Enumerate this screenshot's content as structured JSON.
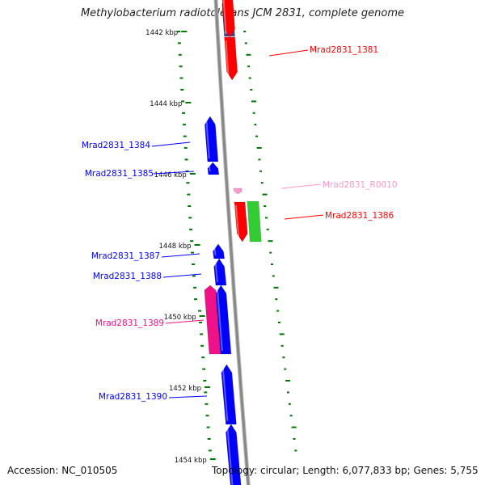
{
  "title": "Methylobacterium radiotolerans JCM 2831, complete genome",
  "footer": {
    "accession": "Accession: NC_010505",
    "summary": "Topology: circular; Length: 6,077,833 bp; Genes: 5,755"
  },
  "colors": {
    "forward_cds": "#0000ff",
    "reverse_cds": "#ff0000",
    "rna": "#ff99cc",
    "pink_cds": "#ee1188",
    "green_cds": "#33cc33",
    "purple_cds": "#4a3f8f",
    "tick": "#007700",
    "backbone": "#888888"
  },
  "ruler": [
    {
      "label": "1442 kbp",
      "kbp": 1442
    },
    {
      "label": "1444 kbp",
      "kbp": 1444
    },
    {
      "label": "1446 kbp",
      "kbp": 1446
    },
    {
      "label": "1448 kbp",
      "kbp": 1448
    },
    {
      "label": "1450 kbp",
      "kbp": 1450
    },
    {
      "label": "1452 kbp",
      "kbp": 1452
    },
    {
      "label": "1454 kbp",
      "kbp": 1454
    }
  ],
  "genes": [
    {
      "label": "",
      "strand": "forward",
      "color": "purple_cds"
    },
    {
      "label": "Mrad2831_1381",
      "strand": "reverse",
      "color": "reverse_cds"
    },
    {
      "label": "Mrad2831_1384",
      "strand": "forward",
      "color": "forward_cds"
    },
    {
      "label": "Mrad2831_1385",
      "strand": "forward",
      "color": "forward_cds"
    },
    {
      "label": "Mrad2831_R0010",
      "strand": "reverse",
      "color": "rna"
    },
    {
      "label": "Mrad2831_1386",
      "strand": "reverse",
      "color": "reverse_cds"
    },
    {
      "label": "",
      "strand": "reverse",
      "color": "green_cds"
    },
    {
      "label": "Mrad2831_1387",
      "strand": "forward",
      "color": "forward_cds"
    },
    {
      "label": "Mrad2831_1388",
      "strand": "forward",
      "color": "forward_cds"
    },
    {
      "label": "Mrad2831_1389",
      "strand": "forward",
      "color": "pink_cds"
    },
    {
      "label": "",
      "strand": "forward",
      "color": "forward_cds"
    },
    {
      "label": "Mrad2831_1390",
      "strand": "forward",
      "color": "forward_cds"
    },
    {
      "label": "",
      "strand": "forward",
      "color": "forward_cds"
    }
  ]
}
